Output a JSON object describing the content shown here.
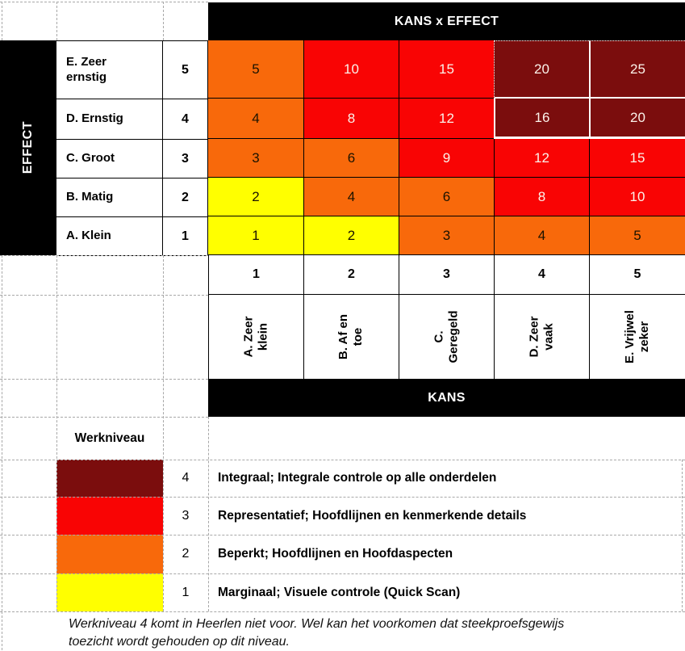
{
  "header": {
    "title": "KANS x EFFECT"
  },
  "colors": {
    "black": "#000000",
    "yellow": "#FFFF00",
    "orange": "#F8690B",
    "red": "#F90404",
    "dark_red": "#7B0D0D",
    "grid_dash": "#A8A8A8",
    "text_dark": "#1B1300",
    "text_light": "#FBF2EA"
  },
  "effect_axis": {
    "label": "EFFECT",
    "rows": [
      {
        "label": "E. Zeer\nernstig",
        "value": "5"
      },
      {
        "label": "D. Ernstig",
        "value": "4"
      },
      {
        "label": "C. Groot",
        "value": "3"
      },
      {
        "label": "B. Matig",
        "value": "2"
      },
      {
        "label": "A. Klein",
        "value": "1"
      }
    ]
  },
  "kans_axis": {
    "label": "KANS",
    "numbers": [
      "1",
      "2",
      "3",
      "4",
      "5"
    ],
    "categories": [
      "A. Zeer\nklein",
      "B. Af en\ntoe",
      "C.\nGeregeld",
      "D. Zeer\nvaak",
      "E. Vrijwel\nzeker"
    ]
  },
  "matrix": {
    "rows": [
      {
        "cells": [
          {
            "v": "5",
            "c": "orange",
            "t": "dark"
          },
          {
            "v": "10",
            "c": "red",
            "t": "light"
          },
          {
            "v": "15",
            "c": "red",
            "t": "light"
          },
          {
            "v": "20",
            "c": "dark_red",
            "t": "light"
          },
          {
            "v": "25",
            "c": "dark_red",
            "t": "light"
          }
        ]
      },
      {
        "cells": [
          {
            "v": "4",
            "c": "orange",
            "t": "dark"
          },
          {
            "v": "8",
            "c": "red",
            "t": "light"
          },
          {
            "v": "12",
            "c": "red",
            "t": "light"
          },
          {
            "v": "16",
            "c": "dark_red",
            "t": "light"
          },
          {
            "v": "20",
            "c": "dark_red",
            "t": "light"
          }
        ]
      },
      {
        "cells": [
          {
            "v": "3",
            "c": "orange",
            "t": "dark"
          },
          {
            "v": "6",
            "c": "orange",
            "t": "dark"
          },
          {
            "v": "9",
            "c": "red",
            "t": "light"
          },
          {
            "v": "12",
            "c": "red",
            "t": "light"
          },
          {
            "v": "15",
            "c": "red",
            "t": "light"
          }
        ]
      },
      {
        "cells": [
          {
            "v": "2",
            "c": "yellow",
            "t": "dark"
          },
          {
            "v": "4",
            "c": "orange",
            "t": "dark"
          },
          {
            "v": "6",
            "c": "orange",
            "t": "dark"
          },
          {
            "v": "8",
            "c": "red",
            "t": "light"
          },
          {
            "v": "10",
            "c": "red",
            "t": "light"
          }
        ]
      },
      {
        "cells": [
          {
            "v": "1",
            "c": "yellow",
            "t": "dark"
          },
          {
            "v": "2",
            "c": "yellow",
            "t": "dark"
          },
          {
            "v": "3",
            "c": "orange",
            "t": "dark"
          },
          {
            "v": "4",
            "c": "orange",
            "t": "dark"
          },
          {
            "v": "5",
            "c": "orange",
            "t": "dark"
          }
        ]
      }
    ]
  },
  "legend": {
    "title": "Werkniveau",
    "items": [
      {
        "level": "4",
        "color": "dark_red",
        "description": "Integraal; Integrale controle op alle onderdelen"
      },
      {
        "level": "3",
        "color": "red",
        "description": "Representatief; Hoofdlijnen en kenmerkende details"
      },
      {
        "level": "2",
        "color": "orange",
        "description": "Beperkt; Hoofdlijnen en Hoofdaspecten"
      },
      {
        "level": "1",
        "color": "yellow",
        "description": "Marginaal; Visuele controle (Quick Scan)"
      }
    ]
  },
  "note": {
    "line1": "Werkniveau 4 komt in Heerlen niet voor. Wel kan het voorkomen dat steekproefsgewijs",
    "line2": "toezicht wordt gehouden op dit niveau."
  },
  "chart_data": {
    "type": "heatmap",
    "title": "KANS x EFFECT",
    "xlabel": "KANS",
    "ylabel": "EFFECT",
    "x_values": [
      1,
      2,
      3,
      4,
      5
    ],
    "x_labels": [
      "A. Zeer klein",
      "B. Af en toe",
      "C. Geregeld",
      "D. Zeer vaak",
      "E. Vrijwel zeker"
    ],
    "y_values": [
      5,
      4,
      3,
      2,
      1
    ],
    "y_labels": [
      "E. Zeer ernstig",
      "D. Ernstig",
      "C. Groot",
      "B. Matig",
      "A. Klein"
    ],
    "values": [
      [
        5,
        10,
        15,
        20,
        25
      ],
      [
        4,
        8,
        12,
        16,
        20
      ],
      [
        3,
        6,
        9,
        12,
        15
      ],
      [
        2,
        4,
        6,
        8,
        10
      ],
      [
        1,
        2,
        3,
        4,
        5
      ]
    ],
    "cell_colors": [
      [
        "orange",
        "red",
        "red",
        "dark_red",
        "dark_red"
      ],
      [
        "orange",
        "red",
        "red",
        "dark_red",
        "dark_red"
      ],
      [
        "orange",
        "orange",
        "red",
        "red",
        "red"
      ],
      [
        "yellow",
        "orange",
        "orange",
        "red",
        "red"
      ],
      [
        "yellow",
        "yellow",
        "orange",
        "orange",
        "orange"
      ]
    ],
    "color_key": {
      "yellow": 1,
      "orange": 2,
      "red": 3,
      "dark_red": 4
    },
    "legend_title": "Werkniveau",
    "legend_entries": [
      {
        "level": 4,
        "color": "dark_red",
        "label": "Integraal; Integrale controle op alle onderdelen"
      },
      {
        "level": 3,
        "color": "red",
        "label": "Representatief; Hoofdlijnen en kenmerkende details"
      },
      {
        "level": 2,
        "color": "orange",
        "label": "Beperkt; Hoofdlijnen en Hoofdaspecten"
      },
      {
        "level": 1,
        "color": "yellow",
        "label": "Marginaal; Visuele controle (Quick Scan)"
      }
    ],
    "annotation": "Werkniveau 4 komt in Heerlen niet voor. Wel kan het voorkomen dat steekproefsgewijs toezicht wordt gehouden op dit niveau."
  }
}
